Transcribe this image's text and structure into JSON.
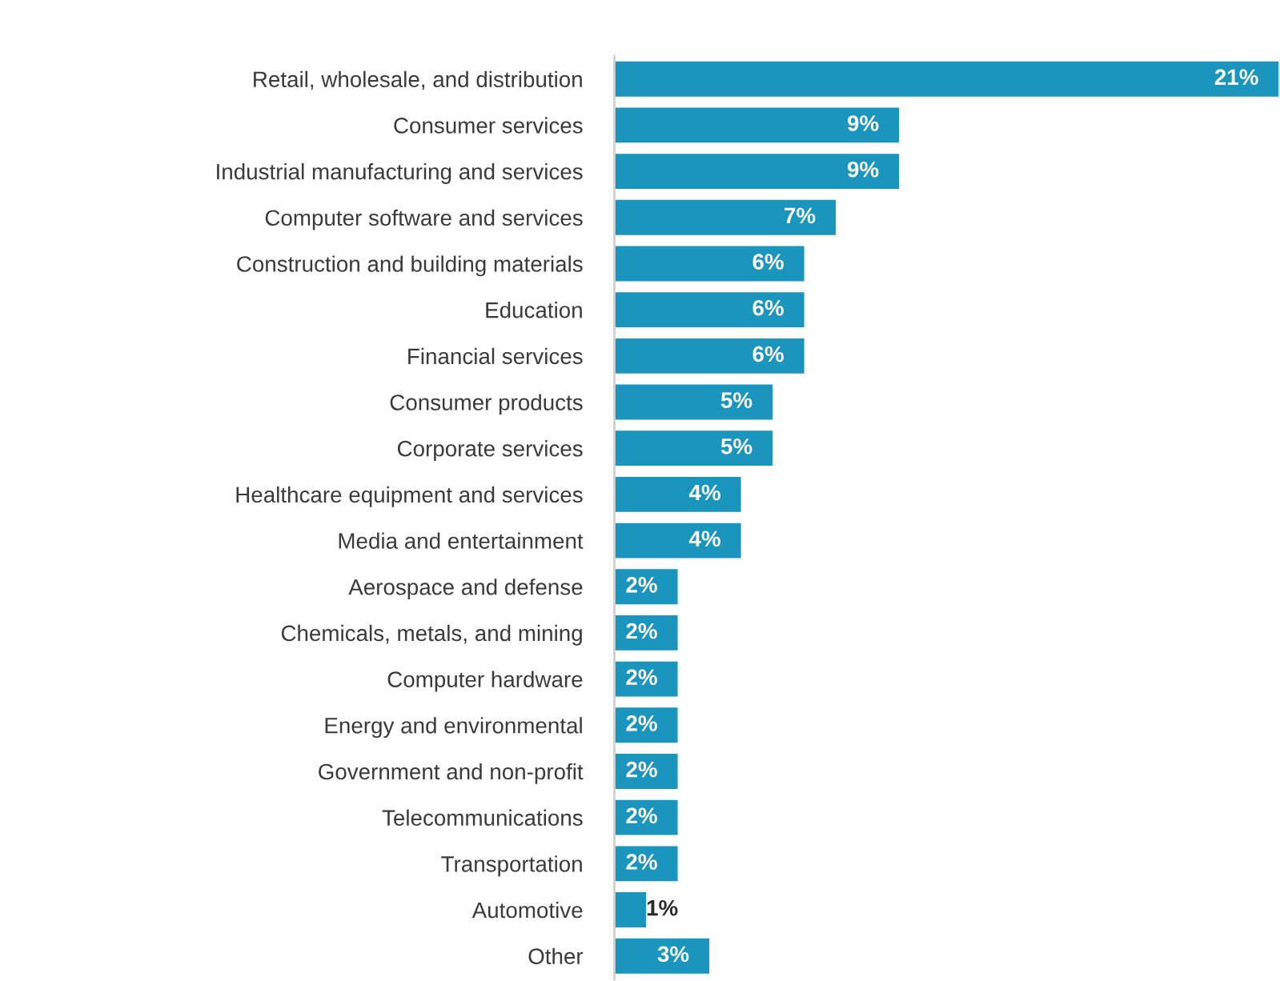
{
  "chart_data": {
    "type": "bar",
    "orientation": "horizontal",
    "categories": [
      "Retail, wholesale, and distribution",
      "Consumer services",
      "Industrial manufacturing and services",
      "Computer software and services",
      "Construction and building materials",
      "Education",
      "Financial services",
      "Consumer products",
      "Corporate services",
      "Healthcare equipment and services",
      "Media and entertainment",
      "Aerospace and defense",
      "Chemicals, metals, and mining",
      "Computer hardware",
      "Energy and environmental",
      "Government and non-profit",
      "Telecommunications",
      "Transportation",
      "Automotive",
      "Other"
    ],
    "values": [
      21,
      9,
      9,
      7,
      6,
      6,
      6,
      5,
      5,
      4,
      4,
      2,
      2,
      2,
      2,
      2,
      2,
      2,
      1,
      3
    ],
    "value_labels": [
      "21%",
      "9%",
      "9%",
      "7%",
      "6%",
      "6%",
      "6%",
      "5%",
      "5%",
      "4%",
      "4%",
      "2%",
      "2%",
      "2%",
      "2%",
      "2%",
      "2%",
      "2%",
      "1%",
      "3%"
    ],
    "color": "#1a95be",
    "xlim": [
      0,
      21
    ],
    "tick_labels": "y",
    "grid": false
  }
}
